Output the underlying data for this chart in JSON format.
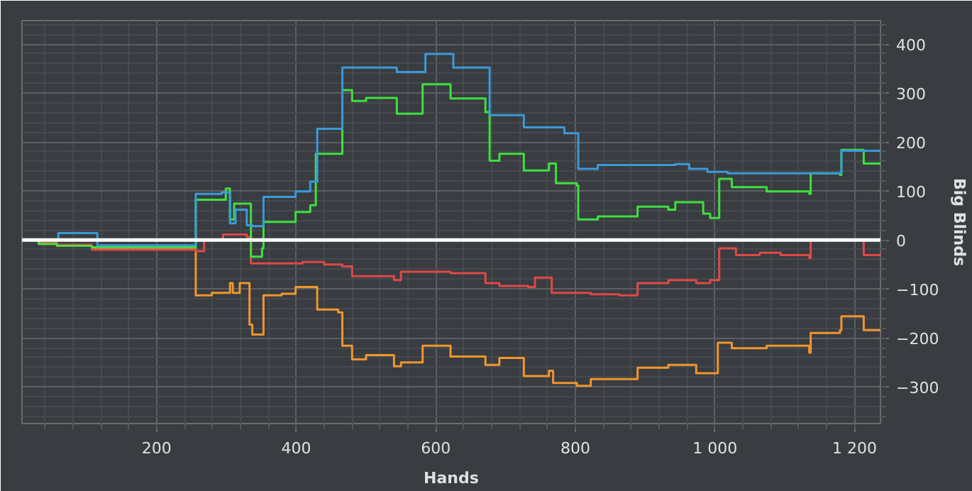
{
  "chart_data": {
    "type": "step",
    "xlabel": "Hands",
    "ylabel": "Big Blinds",
    "xlim": [
      7,
      1237
    ],
    "ylim": [
      -375,
      448
    ],
    "xticks": [
      200,
      400,
      600,
      800,
      {
        "value": 1000,
        "label": "1 000"
      },
      {
        "value": 1200,
        "label": "1 200"
      }
    ],
    "yticks": [
      -300,
      -200,
      -100,
      0,
      100,
      200,
      300,
      400
    ],
    "grid": true,
    "ref_lines": [
      {
        "axis": "y",
        "value": 0,
        "color": "#ffffff"
      }
    ],
    "series": [
      {
        "color": "#f0962e",
        "x": [
          7,
          31,
          57,
          107,
          256,
          279,
          305,
          309,
          319,
          333,
          337,
          353,
          379,
          399,
          430,
          460,
          466,
          480,
          500,
          540,
          550,
          581,
          621,
          671,
          691,
          726,
          762,
          768,
          802,
          822,
          889,
          933,
          973,
          1004,
          1024,
          1074,
          1135,
          1137,
          1179,
          1181,
          1213,
          1237
        ],
        "values": [
          0,
          -8,
          -12,
          -18,
          -113,
          -108,
          -88,
          -108,
          -88,
          -173,
          -193,
          -113,
          -110,
          -96,
          -142,
          -148,
          -216,
          -244,
          -235,
          -258,
          -250,
          -216,
          -238,
          -255,
          -241,
          -278,
          -267,
          -292,
          -298,
          -284,
          -261,
          -255,
          -272,
          -210,
          -221,
          -216,
          -230,
          -190,
          -184,
          -156,
          -184,
          -187
        ]
      },
      {
        "color": "#e04848",
        "x": [
          7,
          31,
          57,
          107,
          256,
          268,
          295,
          329,
          335,
          379,
          409,
          440,
          466,
          480,
          540,
          550,
          621,
          671,
          691,
          732,
          742,
          766,
          822,
          863,
          889,
          933,
          973,
          993,
          1006,
          1030,
          1064,
          1094,
          1135,
          1137,
          1205,
          1213,
          1237
        ],
        "values": [
          0,
          -5,
          -10,
          -20,
          -23,
          0,
          11,
          6,
          -48,
          -48,
          -45,
          -50,
          -54,
          -74,
          -82,
          -65,
          -68,
          -88,
          -94,
          -96,
          -77,
          -108,
          -111,
          -113,
          -88,
          -82,
          -88,
          -82,
          -17,
          -31,
          -26,
          -31,
          -37,
          0,
          0,
          -31,
          -28
        ]
      },
      {
        "color": "#3ee03e",
        "x": [
          7,
          31,
          57,
          107,
          256,
          299,
          305,
          311,
          327,
          335,
          351,
          353,
          399,
          420,
          428,
          466,
          480,
          500,
          544,
          581,
          621,
          671,
          677,
          691,
          726,
          762,
          772,
          802,
          804,
          832,
          883,
          889,
          933,
          943,
          983,
          993,
          1006,
          1024,
          1074,
          1135,
          1137,
          1179,
          1181,
          1213,
          1237
        ],
        "values": [
          0,
          -8,
          -12,
          -15,
          82,
          105,
          42,
          74,
          74,
          -34,
          -17,
          37,
          57,
          71,
          176,
          306,
          284,
          290,
          258,
          318,
          289,
          261,
          162,
          176,
          142,
          156,
          116,
          111,
          42,
          48,
          48,
          68,
          62,
          77,
          54,
          45,
          125,
          108,
          99,
          94,
          136,
          133,
          184,
          156,
          153
        ]
      },
      {
        "color": "#3a9ad9",
        "x": [
          7,
          59,
          115,
          256,
          293,
          305,
          313,
          329,
          337,
          353,
          399,
          420,
          430,
          466,
          544,
          585,
          625,
          677,
          726,
          784,
          804,
          832,
          943,
          963,
          989,
          1018,
          1181,
          1237
        ],
        "values": [
          0,
          14,
          -11,
          94,
          97,
          34,
          62,
          30,
          28,
          88,
          99,
          119,
          227,
          352,
          343,
          380,
          352,
          255,
          230,
          218,
          145,
          153,
          155,
          145,
          139,
          136,
          182,
          178
        ]
      }
    ]
  }
}
